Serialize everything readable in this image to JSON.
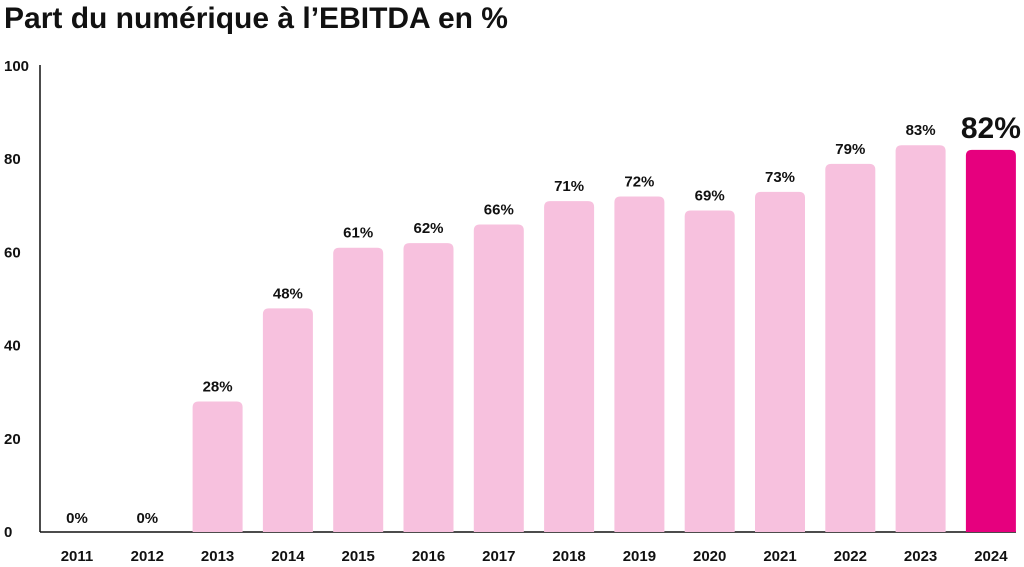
{
  "colors": {
    "bar": "#f7c1de",
    "highlight": "#e6007e",
    "axis": "#111111"
  },
  "chart_data": {
    "type": "bar",
    "title": "Part du numérique à l’EBITDA en %",
    "xlabel": "",
    "ylabel": "",
    "ylim": [
      0,
      100
    ],
    "yticks": [
      "0",
      "20",
      "40",
      "60",
      "80",
      "100"
    ],
    "grid": false,
    "categories": [
      "2011",
      "2012",
      "2013",
      "2014",
      "2015",
      "2016",
      "2017",
      "2018",
      "2019",
      "2020",
      "2021",
      "2022",
      "2023",
      "2024"
    ],
    "values": [
      0,
      0,
      28,
      48,
      61,
      62,
      66,
      71,
      72,
      69,
      73,
      79,
      83,
      82
    ],
    "labels": [
      "0%",
      "0%",
      "28%",
      "48%",
      "61%",
      "62%",
      "66%",
      "71%",
      "72%",
      "69%",
      "73%",
      "79%",
      "83%",
      "82%"
    ],
    "highlight": "2024"
  }
}
